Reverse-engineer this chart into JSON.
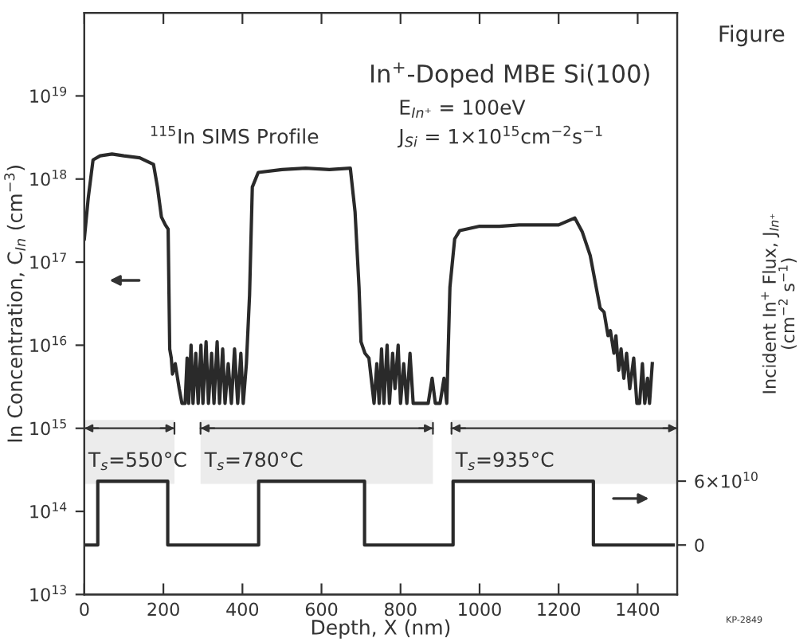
{
  "chart_data": {
    "type": "line",
    "title": "In$^{+}$-Doped MBE Si(100)",
    "xlabel": "Depth, X (nm)",
    "ylabel": "In Concentration, C$_{In}$ (cm$^{−3}$)",
    "y2label": "Incident In$^{+}$ Flux, J$_{In⁺}$\n(cm$^{−2}$ s$^{−1}$)",
    "annotations": [
      "E$_{In⁺}$ = 100eV",
      "J$_{Si}$ = 1×10$^{15}$cm$^{−2}$s$^{−1}$",
      "$^{115}$In SIMS Profile",
      "Figure",
      "KP-2849"
    ],
    "xlim": [
      0,
      1500
    ],
    "xticks": [
      0,
      200,
      400,
      600,
      800,
      1000,
      1200,
      1400
    ],
    "log": "y",
    "ylim": [
      10000000000000.0,
      1e+20
    ],
    "yticks": [
      {
        "value": 10000000000000.0,
        "label": "10$^{13}$"
      },
      {
        "value": 100000000000000.0,
        "label": "10$^{14}$"
      },
      {
        "value": 1000000000000000.0,
        "label": "10$^{15}$"
      },
      {
        "value": 1e+16,
        "label": "10$^{16}$"
      },
      {
        "value": 1e+17,
        "label": "10$^{17}$"
      },
      {
        "value": 1e+18,
        "label": "10$^{18}$"
      },
      {
        "value": 1e+19,
        "label": "10$^{19}$"
      }
    ],
    "y2lim": [
      -46500000000.0,
      500000000000.0
    ],
    "y2ticks": [
      0,
      {
        "value": 60000000000.0,
        "label": "6×10$^{10}$"
      }
    ],
    "grid": false,
    "legend": false,
    "bands": [
      {
        "axis": "x",
        "from": 0,
        "to": 228,
        "label": "T$_{s}$=550°C",
        "color": "#ececec"
      },
      {
        "axis": "x",
        "from": 294,
        "to": 882,
        "label": "T$_{s}$=780°C",
        "color": "#ececec"
      },
      {
        "axis": "x",
        "from": 929,
        "to": 1500,
        "label": "T$_{s}$=935°C",
        "color": "#ececec"
      }
    ],
    "series": [
      {
        "color": "#2a2a2a",
        "x": [
          0,
          10,
          22,
          40,
          70,
          100,
          140,
          175,
          185,
          195,
          205,
          212,
          216,
          220,
          223,
          230,
          240,
          247,
          255,
          260,
          264,
          270,
          275,
          282,
          288,
          295,
          300,
          308,
          314,
          322,
          328,
          336,
          342,
          350,
          356,
          364,
          372,
          380,
          388,
          396,
          402,
          410,
          418,
          425,
          440,
          500,
          560,
          620,
          673,
          685,
          695,
          700,
          710,
          720,
          733,
          740,
          746,
          752,
          758,
          766,
          772,
          780,
          786,
          794,
          800,
          808,
          816,
          824,
          832,
          850,
          870,
          880,
          888,
          900,
          910,
          917,
          925,
          937,
          950,
          1000,
          1050,
          1100,
          1150,
          1200,
          1241,
          1260,
          1280,
          1295,
          1305,
          1315,
          1325,
          1331,
          1340,
          1345,
          1352,
          1358,
          1365,
          1372,
          1380,
          1390,
          1398,
          1405,
          1412,
          1418,
          1425,
          1430,
          1437
        ],
        "values": [
          1.9e+17,
          6e+17,
          1.7e+18,
          1.9e+18,
          2e+18,
          1.9e+18,
          1.8e+18,
          1.5e+18,
          8e+17,
          3.5e+17,
          2.8e+17,
          2.5e+17,
          9000000000000000.0,
          7000000000000000.0,
          4500000000000000.0,
          6000000000000000.0,
          3000000000000000.0,
          2000000000000000.0,
          2000000000000000.0,
          7000000000000000.0,
          2000000000000000.0,
          1e+16,
          2000000000000000.0,
          8000000000000000.0,
          2000000000000000.0,
          1e+16,
          2000000000000000.0,
          1.1e+16,
          2000000000000000.0,
          8000000000000000.0,
          2000000000000000.0,
          1.1e+16,
          2000000000000000.0,
          9000000000000000.0,
          2000000000000000.0,
          6000000000000000.0,
          2000000000000000.0,
          9000000000000000.0,
          2000000000000000.0,
          8000000000000000.0,
          2000000000000000.0,
          6000000000000000.0,
          4e+16,
          8e+17,
          1.2e+18,
          1.3e+18,
          1.35e+18,
          1.3e+18,
          1.35e+18,
          4e+17,
          5e+16,
          1.1e+16,
          8000000000000000.0,
          7000000000000000.0,
          2000000000000000.0,
          6000000000000000.0,
          2000000000000000.0,
          9000000000000000.0,
          2000000000000000.0,
          1e+16,
          2000000000000000.0,
          8000000000000000.0,
          3000000000000000.0,
          1e+16,
          2000000000000000.0,
          6000000000000000.0,
          2000000000000000.0,
          8000000000000000.0,
          2000000000000000.0,
          2000000000000000.0,
          2000000000000000.0,
          4000000000000000.0,
          2000000000000000.0,
          2000000000000000.0,
          4000000000000000.0,
          2000000000000000.0,
          5e+16,
          1.9e+17,
          2.4e+17,
          2.7e+17,
          2.7e+17,
          2.8e+17,
          2.8e+17,
          2.8e+17,
          3.4e+17,
          2.3e+17,
          1.2e+17,
          5e+16,
          2.8e+16,
          2.5e+16,
          1.3e+16,
          1.5e+16,
          8000000000000000.0,
          1.3e+16,
          5000000000000000.0,
          9000000000000000.0,
          4000000000000000.0,
          8000000000000000.0,
          3000000000000000.0,
          7000000000000000.0,
          2000000000000000.0,
          2000000000000000.0,
          6000000000000000.0,
          2000000000000000.0,
          4000000000000000.0,
          2000000000000000.0,
          6000000000000000.0
        ]
      },
      {
        "color": "#2a2a2a",
        "axis": "y2",
        "x": [
          0,
          34,
          34,
          211,
          211,
          441,
          441,
          709,
          709,
          933,
          933,
          1288,
          1288,
          1490
        ],
        "values": [
          0,
          0,
          60000000000.0,
          60000000000.0,
          0,
          0,
          60000000000.0,
          60000000000.0,
          0,
          0,
          60000000000.0,
          60000000000.0,
          0,
          0
        ]
      }
    ]
  }
}
